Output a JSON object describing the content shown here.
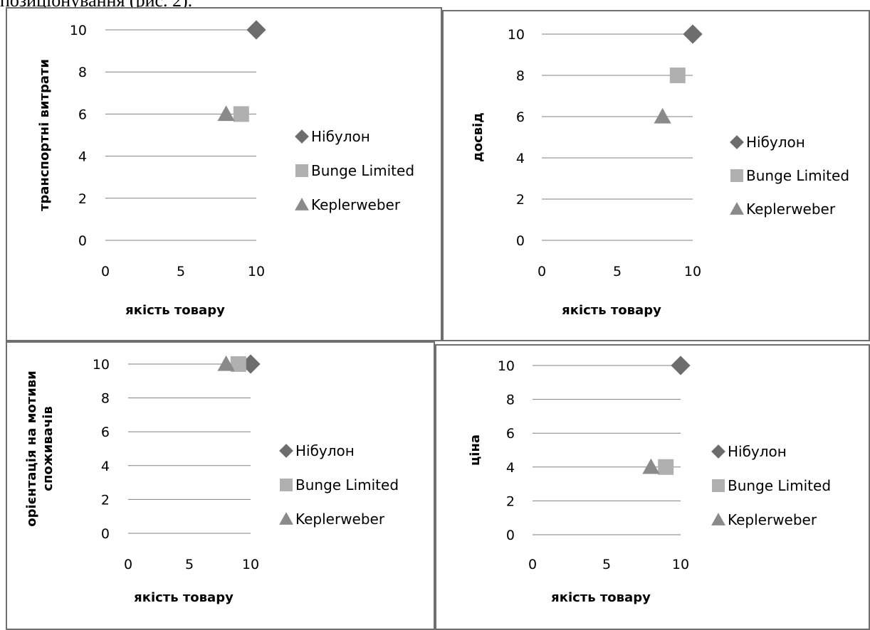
{
  "caption": "позиціонування (рис. 2).",
  "colors": {
    "diamond": "#6d6d6d",
    "square": "#b0b0b0",
    "triangle": "#8a8a8a",
    "grid": "#808080",
    "frame": "#6f6f6f"
  },
  "chart_data": [
    {
      "type": "scatter",
      "xlabel": "якість товару",
      "ylabel": "транспортні витрати",
      "xlim": [
        0,
        10
      ],
      "ylim": [
        0,
        10
      ],
      "xticks": [
        "0",
        "5",
        "10"
      ],
      "yticks": [
        "0",
        "2",
        "4",
        "6",
        "8",
        "10"
      ],
      "grid": "horizontal",
      "legend_position": "right",
      "series": [
        {
          "name": "Нібулон",
          "marker": "diamond",
          "points": [
            [
              10,
              10
            ]
          ]
        },
        {
          "name": "Bunge Limited",
          "marker": "square",
          "points": [
            [
              9,
              6
            ]
          ]
        },
        {
          "name": "Keplerweber",
          "marker": "triangle",
          "points": [
            [
              8,
              6
            ]
          ]
        }
      ]
    },
    {
      "type": "scatter",
      "xlabel": "якість товару",
      "ylabel": "досвід",
      "xlim": [
        0,
        10
      ],
      "ylim": [
        0,
        10
      ],
      "xticks": [
        "0",
        "5",
        "10"
      ],
      "yticks": [
        "0",
        "2",
        "4",
        "6",
        "8",
        "10"
      ],
      "grid": "horizontal",
      "legend_position": "right",
      "series": [
        {
          "name": "Нібулон",
          "marker": "diamond",
          "points": [
            [
              10,
              10
            ]
          ]
        },
        {
          "name": "Bunge Limited",
          "marker": "square",
          "points": [
            [
              9,
              8
            ]
          ]
        },
        {
          "name": "Keplerweber",
          "marker": "triangle",
          "points": [
            [
              8,
              6
            ]
          ]
        }
      ]
    },
    {
      "type": "scatter",
      "xlabel": "якість товару",
      "ylabel": "орієнтація на мотиви споживачів",
      "ylabel_lines": [
        "орієнтація на мотиви",
        "споживачів"
      ],
      "xlim": [
        0,
        10
      ],
      "ylim": [
        0,
        10
      ],
      "xticks": [
        "0",
        "5",
        "10"
      ],
      "yticks": [
        "0",
        "2",
        "4",
        "6",
        "8",
        "10"
      ],
      "grid": "horizontal",
      "legend_position": "right",
      "series": [
        {
          "name": "Нібулон",
          "marker": "diamond",
          "points": [
            [
              10,
              10
            ]
          ]
        },
        {
          "name": "Bunge Limited",
          "marker": "square",
          "points": [
            [
              9,
              10
            ]
          ]
        },
        {
          "name": "Keplerweber",
          "marker": "triangle",
          "points": [
            [
              8,
              10
            ]
          ]
        }
      ]
    },
    {
      "type": "scatter",
      "xlabel": "якість товару",
      "ylabel": "ціна",
      "xlim": [
        0,
        10
      ],
      "ylim": [
        0,
        10
      ],
      "xticks": [
        "0",
        "5",
        "10"
      ],
      "yticks": [
        "0",
        "2",
        "4",
        "6",
        "8",
        "10"
      ],
      "grid": "horizontal",
      "legend_position": "right",
      "series": [
        {
          "name": "Нібулон",
          "marker": "diamond",
          "points": [
            [
              10,
              10
            ]
          ]
        },
        {
          "name": "Bunge Limited",
          "marker": "square",
          "points": [
            [
              9,
              4
            ]
          ]
        },
        {
          "name": "Keplerweber",
          "marker": "triangle",
          "points": [
            [
              8,
              4
            ]
          ]
        }
      ]
    }
  ]
}
